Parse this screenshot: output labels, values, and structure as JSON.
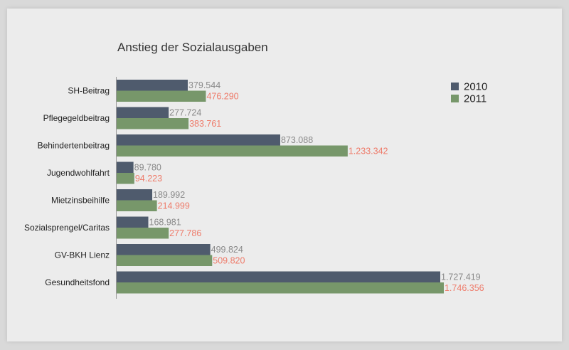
{
  "chart_data": {
    "type": "bar",
    "orientation": "horizontal",
    "title": "Anstieg der Sozialausgaben",
    "categories": [
      "SH-Beitrag",
      "Pflegegeldbeitrag",
      "Behindertenbeitrag",
      "Jugendwohlfahrt",
      "Mietzinsbeihilfe",
      "Sozialsprengel/Caritas",
      "GV-BKH Lienz",
      "Gesundheitsfond"
    ],
    "series": [
      {
        "name": "2010",
        "color": "#4f5b6d",
        "label_color": "#8a8a8a",
        "values": [
          379544,
          277724,
          873088,
          89780,
          189992,
          168981,
          499824,
          1727419
        ],
        "labels": [
          "379.544",
          "277.724",
          "873.088",
          "89.780",
          "189.992",
          "168.981",
          "499.824",
          "1.727.419"
        ]
      },
      {
        "name": "2011",
        "color": "#77976a",
        "label_color": "#ee7b6a",
        "values": [
          476290,
          383761,
          1233342,
          94223,
          214999,
          277786,
          509820,
          1746356
        ],
        "labels": [
          "476.290",
          "383.761",
          "1.233.342",
          "94.223",
          "214.999",
          "277.786",
          "509.820",
          "1.746.356"
        ]
      }
    ],
    "legend_position": "top-right",
    "grid": false
  }
}
